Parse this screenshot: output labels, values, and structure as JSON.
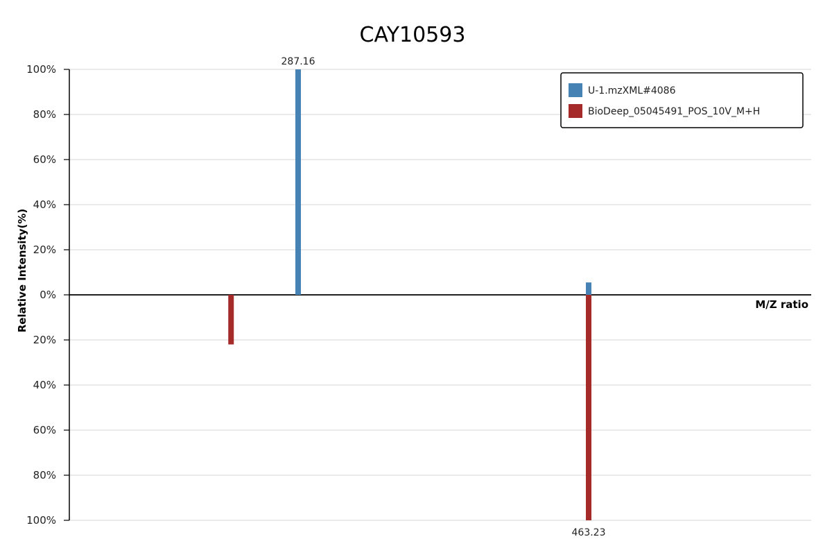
{
  "chart_data": {
    "type": "bar",
    "title": "CAY10593",
    "xlabel": "M/Z ratio",
    "ylabel": "Relative Intensity(%)",
    "ylim": [
      -100,
      100
    ],
    "y_ticks": [
      {
        "value": 100,
        "label": "100%"
      },
      {
        "value": 80,
        "label": "80%"
      },
      {
        "value": 60,
        "label": "60%"
      },
      {
        "value": 40,
        "label": "40%"
      },
      {
        "value": 20,
        "label": "20%"
      },
      {
        "value": 0,
        "label": "0%"
      },
      {
        "value": -20,
        "label": "20%"
      },
      {
        "value": -40,
        "label": "40%"
      },
      {
        "value": -60,
        "label": "60%"
      },
      {
        "value": -80,
        "label": "80%"
      },
      {
        "value": -100,
        "label": "100%"
      }
    ],
    "grid": true,
    "legend_position": "top-right",
    "series": [
      {
        "name": "U-1.mzXML#4086",
        "color": "#4682b4",
        "direction": "up",
        "peaks": [
          {
            "mz": 287.16,
            "intensity": 100,
            "label": "287.16"
          },
          {
            "mz": 463.23,
            "intensity": 5.5,
            "label": ""
          }
        ]
      },
      {
        "name": "BioDeep_05045491_POS_10V_M+H",
        "color": "#a52a2a",
        "direction": "down",
        "peaks": [
          {
            "mz": 246.5,
            "intensity": 22,
            "label": ""
          },
          {
            "mz": 463.23,
            "intensity": 100,
            "label": "463.23"
          }
        ]
      }
    ]
  }
}
